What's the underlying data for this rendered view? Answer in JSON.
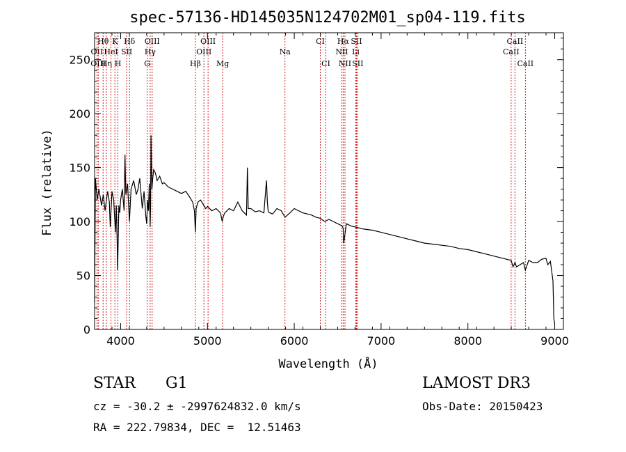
{
  "chart_data": {
    "type": "line",
    "title": "spec-57136-HD145035N124702M01_sp04-119.fits",
    "xlabel": "Wavelength (Å)",
    "ylabel": "Flux (relative)",
    "xlim": [
      3700,
      9100
    ],
    "ylim": [
      0,
      275
    ],
    "xticks": [
      4000,
      5000,
      6000,
      7000,
      8000,
      9000
    ],
    "yticks": [
      0,
      50,
      100,
      150,
      200,
      250
    ],
    "grid": false,
    "series": [
      {
        "name": "flux",
        "x": [
          3700,
          3710,
          3730,
          3750,
          3780,
          3800,
          3820,
          3850,
          3870,
          3880,
          3900,
          3920,
          3930,
          3940,
          3950,
          3960,
          3965,
          3970,
          3980,
          3990,
          4000,
          4020,
          4040,
          4050,
          4060,
          4080,
          4101,
          4120,
          4150,
          4180,
          4200,
          4220,
          4250,
          4270,
          4290,
          4300,
          4310,
          4320,
          4330,
          4340,
          4345,
          4350,
          4360,
          4370,
          4380,
          4400,
          4420,
          4450,
          4480,
          4500,
          4550,
          4600,
          4650,
          4700,
          4750,
          4800,
          4830,
          4850,
          4861,
          4870,
          4890,
          4920,
          4950,
          4980,
          5000,
          5050,
          5100,
          5150,
          5170,
          5184,
          5200,
          5250,
          5300,
          5350,
          5400,
          5450,
          5460,
          5470,
          5500,
          5550,
          5600,
          5650,
          5680,
          5690,
          5700,
          5720,
          5750,
          5800,
          5850,
          5893,
          5950,
          6000,
          6050,
          6100,
          6150,
          6200,
          6250,
          6300,
          6350,
          6400,
          6450,
          6500,
          6550,
          6563,
          6570,
          6600,
          6650,
          6700,
          6750,
          6800,
          6900,
          7000,
          7100,
          7200,
          7300,
          7400,
          7500,
          7600,
          7700,
          7800,
          7900,
          8000,
          8100,
          8200,
          8300,
          8400,
          8498,
          8520,
          8542,
          8560,
          8600,
          8640,
          8662,
          8700,
          8750,
          8800,
          8850,
          8900,
          8920,
          8950,
          8980,
          8990,
          9000
        ],
        "values": [
          25,
          140,
          120,
          130,
          115,
          125,
          110,
          128,
          118,
          95,
          128,
          120,
          105,
          90,
          115,
          80,
          55,
          75,
          115,
          108,
          120,
          130,
          110,
          162,
          125,
          135,
          100,
          130,
          138,
          125,
          130,
          140,
          112,
          128,
          105,
          98,
          120,
          110,
          135,
          95,
          115,
          180,
          130,
          140,
          148,
          145,
          138,
          142,
          135,
          136,
          132,
          130,
          128,
          126,
          128,
          122,
          118,
          110,
          90,
          112,
          118,
          120,
          116,
          112,
          114,
          110,
          112,
          108,
          100,
          105,
          108,
          112,
          110,
          118,
          110,
          106,
          150,
          112,
          112,
          109,
          110,
          108,
          138,
          118,
          109,
          108,
          107,
          112,
          110,
          104,
          108,
          112,
          110,
          108,
          107,
          106,
          104,
          103,
          100,
          102,
          100,
          98,
          96,
          94,
          80,
          98,
          96,
          95,
          94,
          93,
          92,
          90,
          88,
          86,
          84,
          82,
          80,
          79,
          78,
          77,
          75,
          74,
          72,
          70,
          68,
          66,
          64,
          58,
          62,
          58,
          60,
          62,
          55,
          64,
          62,
          62,
          65,
          66,
          60,
          63,
          45,
          10,
          5
        ]
      }
    ],
    "line_markers": [
      {
        "label": "Hθ",
        "wavelength": 3798,
        "row": 1
      },
      {
        "label": "OII",
        "wavelength": 3727,
        "row": 2
      },
      {
        "label": "OIII",
        "wavelength": 3742,
        "row": 3
      },
      {
        "label": "K",
        "wavelength": 3934,
        "row": 1
      },
      {
        "label": "HeI",
        "wavelength": 3889,
        "row": 2
      },
      {
        "label": "Hη",
        "wavelength": 3835,
        "row": 3
      },
      {
        "label": "H",
        "wavelength": 3969,
        "row": 3
      },
      {
        "label": "SII",
        "wavelength": 4069,
        "row": 2
      },
      {
        "label": "Hδ",
        "wavelength": 4102,
        "row": 1
      },
      {
        "label": "OIII",
        "wavelength": 4363,
        "row": 1
      },
      {
        "label": "Hγ",
        "wavelength": 4340,
        "row": 2
      },
      {
        "label": "G",
        "wavelength": 4305,
        "row": 3
      },
      {
        "label": "Hβ",
        "wavelength": 4861,
        "row": 3
      },
      {
        "label": "OIII",
        "wavelength": 5007,
        "row": 1
      },
      {
        "label": "OIII",
        "wavelength": 4959,
        "row": 2
      },
      {
        "label": "Mg",
        "wavelength": 5175,
        "row": 3
      },
      {
        "label": "Na",
        "wavelength": 5893,
        "row": 2
      },
      {
        "label": "CI",
        "wavelength": 6300,
        "row": 1
      },
      {
        "label": "CI",
        "wavelength": 6364,
        "row": 3
      },
      {
        "label": "Hα",
        "wavelength": 6563,
        "row": 1
      },
      {
        "label": "SII",
        "wavelength": 6716,
        "row": 1
      },
      {
        "label": "NII",
        "wavelength": 6548,
        "row": 2
      },
      {
        "label": "Li",
        "wavelength": 6708,
        "row": 2
      },
      {
        "label": "NII",
        "wavelength": 6584,
        "row": 3
      },
      {
        "label": "SII",
        "wavelength": 6731,
        "row": 3
      },
      {
        "label": "CaII",
        "wavelength": 8542,
        "row": 1
      },
      {
        "label": "CaII",
        "wavelength": 8498,
        "row": 2
      },
      {
        "label": "CaII",
        "wavelength": 8662,
        "row": 3
      }
    ],
    "marker_color": "#cc0000"
  },
  "info": {
    "object_type": "STAR",
    "subclass": "G1",
    "survey": "LAMOST DR3",
    "velocity": "cz = -30.2 ± -2997624832.0 km/s",
    "obs_date": "Obs-Date: 20150423",
    "coords": "RA = 222.79834, DEC =  12.51463"
  }
}
